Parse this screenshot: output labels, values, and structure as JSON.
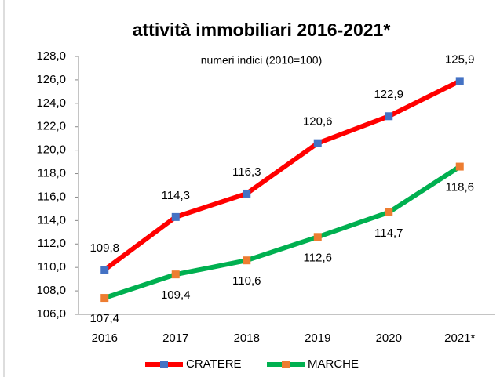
{
  "chart_data": {
    "type": "line",
    "title": "attività immobiliari 2016-2021*",
    "subtitle": "numeri indici (2010=100)",
    "categories": [
      "2016",
      "2017",
      "2018",
      "2019",
      "2020",
      "2021*"
    ],
    "series": [
      {
        "name": "CRATERE",
        "color": "#ff0000",
        "marker_color": "#4472c4",
        "values": [
          109.8,
          114.3,
          116.3,
          120.6,
          122.9,
          125.9
        ],
        "value_labels": [
          "109,8",
          "114,3",
          "116,3",
          "120,6",
          "122,9",
          "125,9"
        ]
      },
      {
        "name": "MARCHE",
        "color": "#00b050",
        "marker_color": "#ed7d31",
        "values": [
          107.4,
          109.4,
          110.6,
          112.6,
          114.7,
          118.6
        ],
        "value_labels": [
          "107,4",
          "109,4",
          "110,6",
          "112,6",
          "114,7",
          "118,6"
        ]
      }
    ],
    "ylim": [
      106,
      128
    ],
    "yticks": [
      {
        "value": 106,
        "label": "106,0"
      },
      {
        "value": 108,
        "label": "108,0"
      },
      {
        "value": 110,
        "label": "110,0"
      },
      {
        "value": 112,
        "label": "112,0"
      },
      {
        "value": 114,
        "label": "114,0"
      },
      {
        "value": 116,
        "label": "116,0"
      },
      {
        "value": 118,
        "label": "118,0"
      },
      {
        "value": 120,
        "label": "120,0"
      },
      {
        "value": 122,
        "label": "122,0"
      },
      {
        "value": 124,
        "label": "124,0"
      },
      {
        "value": 126,
        "label": "126,0"
      },
      {
        "value": 128,
        "label": "128,0"
      }
    ],
    "grid": false,
    "legend": "bottom"
  }
}
